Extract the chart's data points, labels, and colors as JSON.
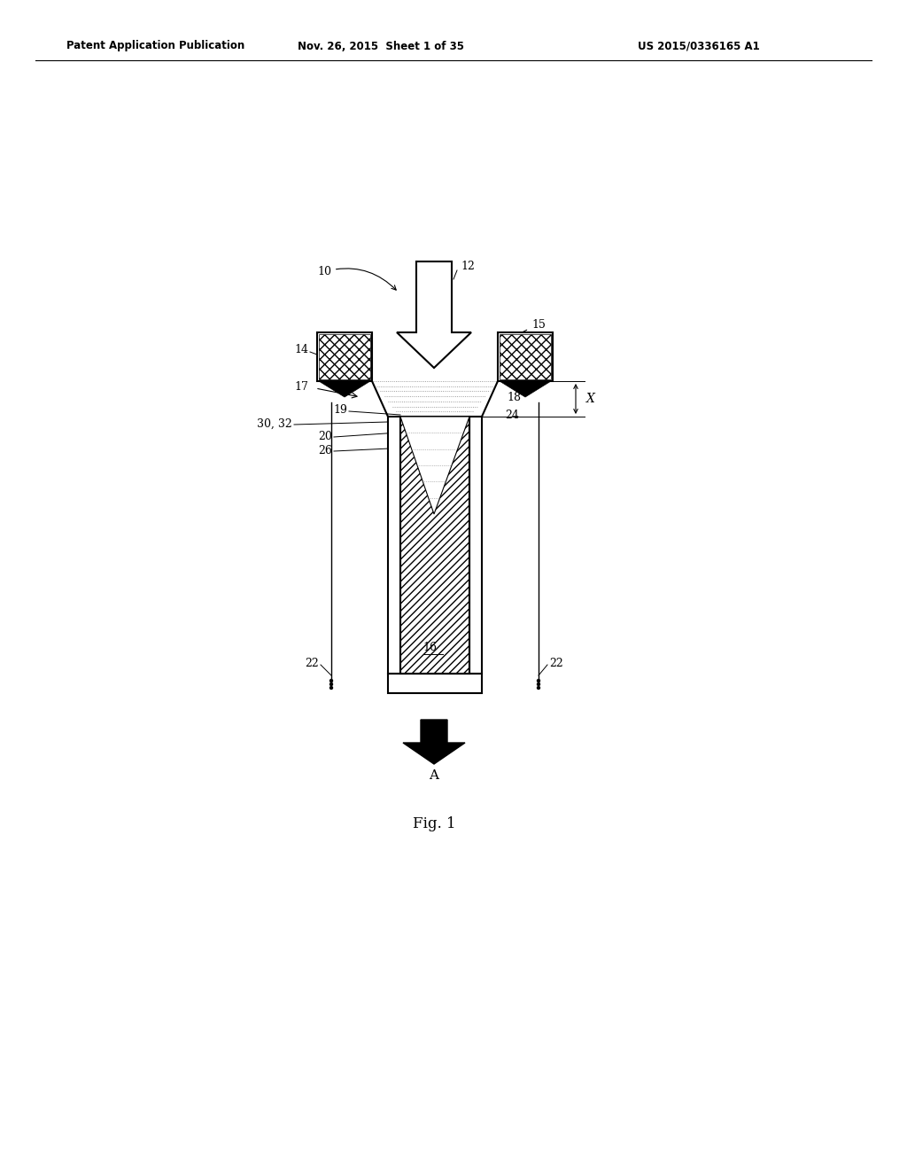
{
  "bg_color": "#ffffff",
  "header_left": "Patent Application Publication",
  "header_center": "Nov. 26, 2015  Sheet 1 of 35",
  "header_right": "US 2015/0336165 A1",
  "fig_label": "Fig. 1"
}
